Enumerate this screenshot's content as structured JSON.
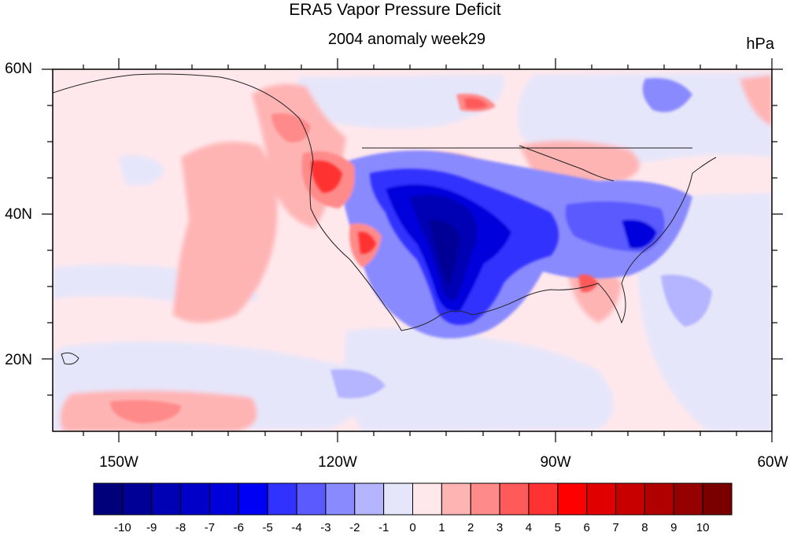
{
  "title": "ERA5 Vapor Pressure Deficit",
  "subtitle": "2004 anomaly week29",
  "units": "hPa",
  "map": {
    "projection": "cylindrical equidistant",
    "lon_range": [
      -159,
      -60
    ],
    "lat_range": [
      10,
      60
    ],
    "lat_ticks": [
      "60N",
      "40N",
      "20N"
    ],
    "lon_ticks": [
      "150W",
      "120W",
      "90W",
      "60W"
    ]
  },
  "colorbar": {
    "labels": [
      "-10",
      "-9",
      "-8",
      "-7",
      "-6",
      "-5",
      "-4",
      "-3",
      "-2",
      "-1",
      "0",
      "1",
      "2",
      "3",
      "4",
      "5",
      "6",
      "7",
      "8",
      "9",
      "10"
    ],
    "colors": [
      "#00007a",
      "#000096",
      "#0000b4",
      "#0000c8",
      "#0000dc",
      "#0000f5",
      "#3232ff",
      "#5a5aff",
      "#8a8aff",
      "#b4b4ff",
      "#e6e6fa",
      "#ffe8ec",
      "#ffb4b4",
      "#ff8a8a",
      "#ff5a5a",
      "#ff3232",
      "#ff0000",
      "#e00000",
      "#c80000",
      "#b00000",
      "#960000",
      "#7a0000"
    ]
  }
}
